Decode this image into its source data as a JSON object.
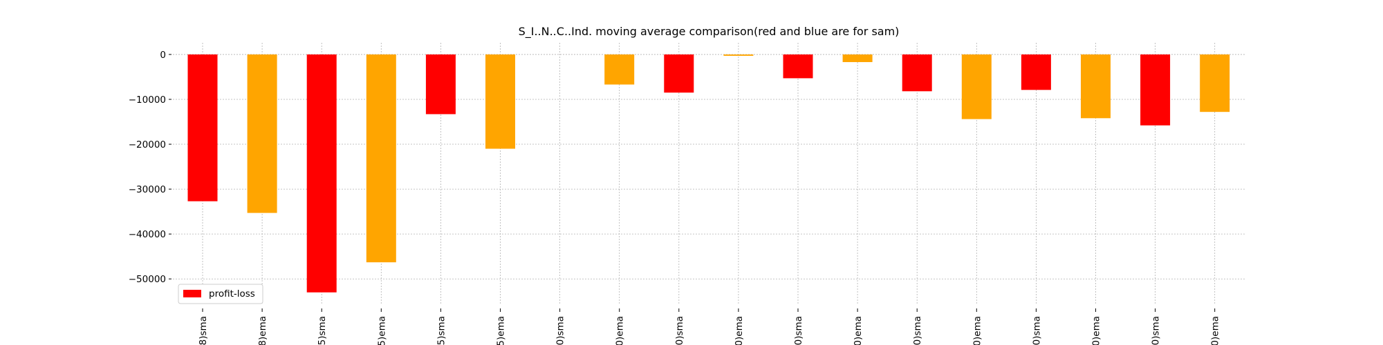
{
  "chart_data": {
    "type": "bar",
    "title": "S_I..N..C..Ind. moving average comparison(red and blue are for sam)",
    "xlabel": "",
    "ylabel": "",
    "ylim": [
      -55500,
      2600
    ],
    "yticks": [
      0,
      -10000,
      -20000,
      -30000,
      -40000,
      -50000
    ],
    "ytick_labels": [
      "0",
      "−10000",
      "−20000",
      "−30000",
      "−40000",
      "−50000"
    ],
    "grid": true,
    "legend_position": "lower-left",
    "categories": [
      "8)sma",
      "8)ema",
      "5)sma",
      "5)ema",
      "5)sma",
      "5)ema",
      "0)sma",
      "0)ema",
      "0)sma",
      "0)ema",
      "0)sma",
      "0)ema",
      "0)sma",
      "0)ema",
      "0)sma",
      "0)ema",
      "0)sma",
      "0)ema"
    ],
    "series": [
      {
        "name": "profit-loss",
        "values": [
          -32700,
          -35300,
          -53000,
          -46300,
          -13300,
          -21000,
          0,
          -6700,
          -8500,
          -300,
          -5300,
          -1700,
          -8200,
          -14400,
          -7900,
          -14200,
          -15800,
          -12800
        ],
        "colors": [
          "#ff0000",
          "#ffa500",
          "#ff0000",
          "#ffa500",
          "#ff0000",
          "#ffa500",
          "#ff0000",
          "#ffa500",
          "#ff0000",
          "#ffa500",
          "#ff0000",
          "#ffa500",
          "#ff0000",
          "#ffa500",
          "#ff0000",
          "#ffa500",
          "#ff0000",
          "#ffa500"
        ]
      }
    ]
  },
  "legend": {
    "label": "profit-loss",
    "color": "#ff0000"
  }
}
